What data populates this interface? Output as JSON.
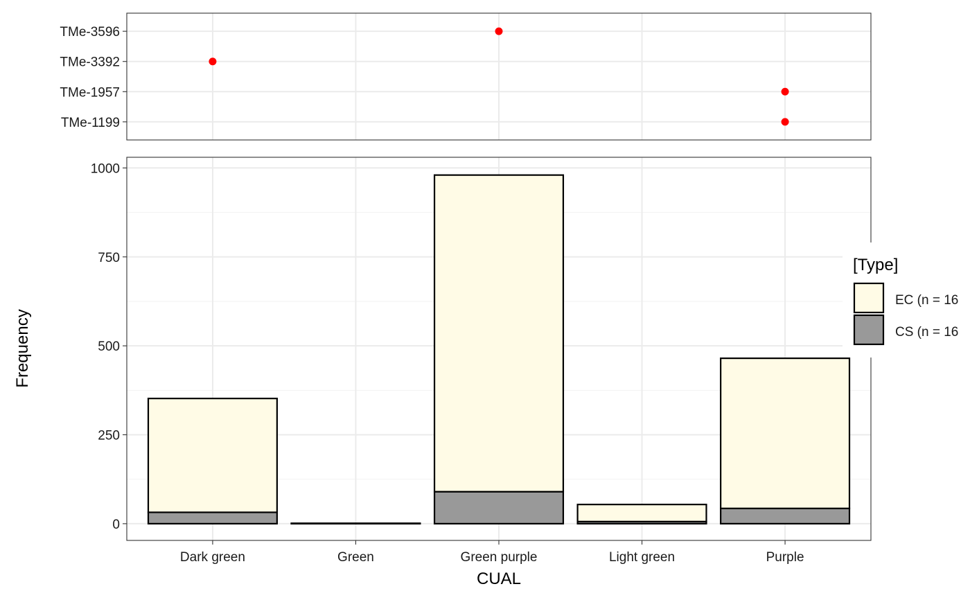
{
  "chart_data": [
    {
      "type": "scatter",
      "categories": [
        "Dark green",
        "Green",
        "Green purple",
        "Light green",
        "Purple"
      ],
      "y_categories": [
        "TMe-1199",
        "TMe-1957",
        "TMe-3392",
        "TMe-3596"
      ],
      "points": [
        {
          "x": "Green purple",
          "y": "TMe-3596"
        },
        {
          "x": "Dark green",
          "y": "TMe-3392"
        },
        {
          "x": "Purple",
          "y": "TMe-1957"
        },
        {
          "x": "Purple",
          "y": "TMe-1199"
        }
      ],
      "point_color": "#ff0000",
      "grid": true
    },
    {
      "type": "bar",
      "stacked": true,
      "categories": [
        "Dark green",
        "Green",
        "Green purple",
        "Light green",
        "Purple"
      ],
      "series": [
        {
          "name": "CS (n = 16",
          "values": [
            32,
            1,
            90,
            6,
            43
          ],
          "color": "#999999"
        },
        {
          "name": "EC (n = 16",
          "values": [
            320,
            0,
            890,
            48,
            422
          ],
          "color": "#fffbe6"
        }
      ],
      "xlabel": "CUAL",
      "ylabel": "Frequency",
      "ylim": [
        -47,
        1030
      ],
      "yticks": [
        0,
        250,
        500,
        750,
        1000
      ],
      "legend": {
        "title": "[Type]",
        "placement": "right"
      },
      "grid": true
    }
  ]
}
